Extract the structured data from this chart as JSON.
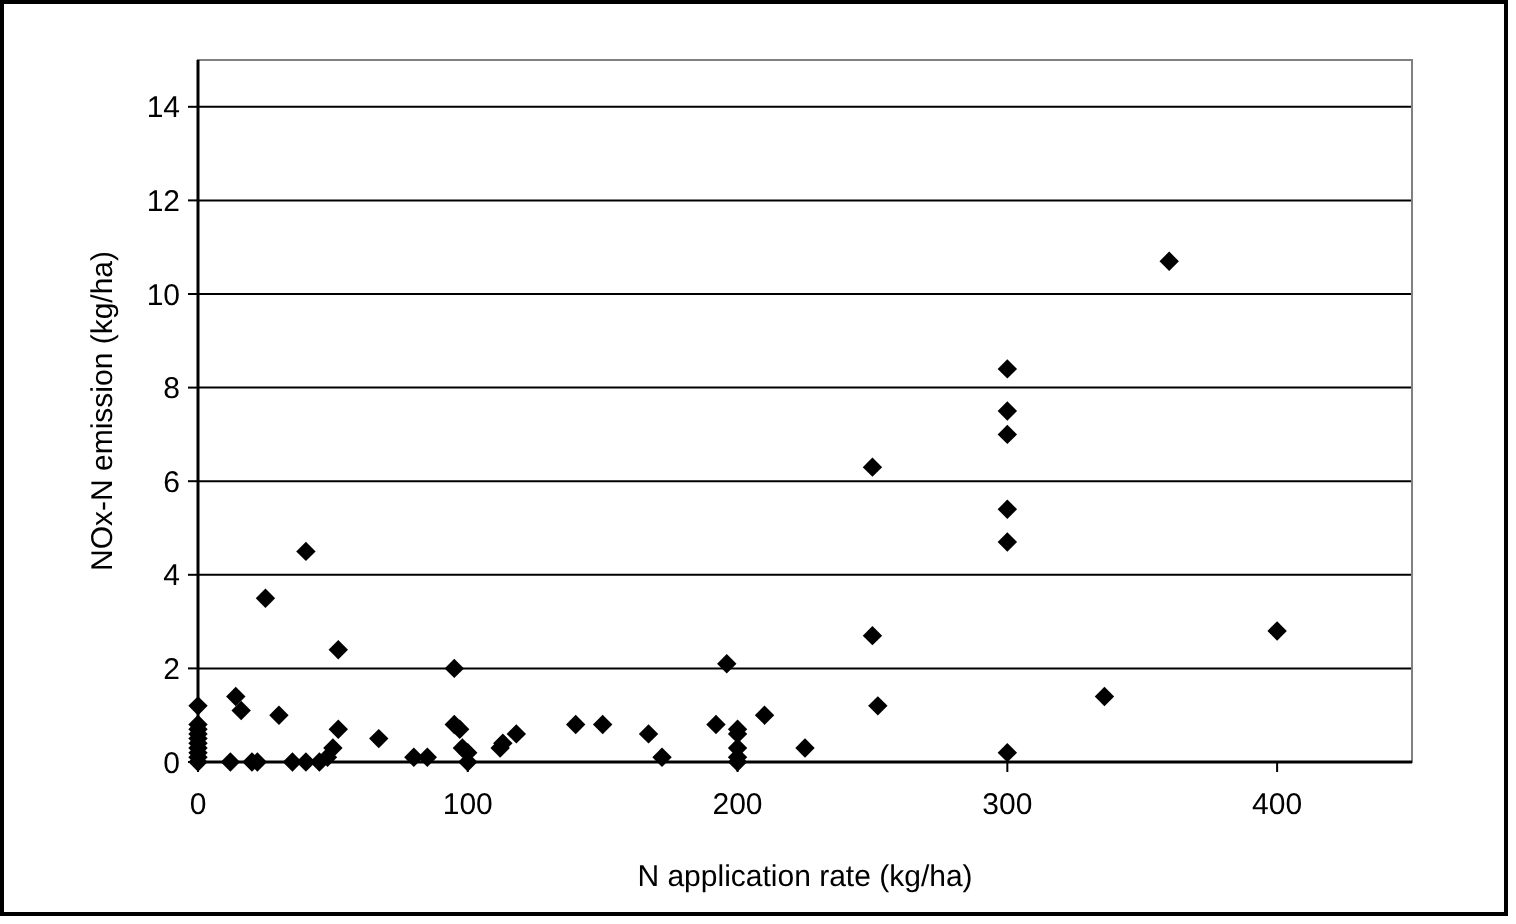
{
  "chart_data": {
    "type": "scatter",
    "xlabel": "N application rate (kg/ha)",
    "ylabel": "NOx-N emission (kg/ha)",
    "x": [
      0,
      0,
      0,
      0,
      0,
      0,
      0,
      0,
      0,
      0,
      12,
      14,
      16,
      20,
      22,
      25,
      30,
      35,
      40,
      40,
      45,
      48,
      50,
      52,
      52,
      67,
      80,
      85,
      95,
      95,
      97,
      98,
      100,
      100,
      112,
      113,
      118,
      140,
      150,
      167,
      172,
      192,
      196,
      200,
      200,
      200,
      200,
      200,
      210,
      225,
      250,
      250,
      252,
      300,
      300,
      300,
      300,
      300,
      300,
      336,
      360,
      400
    ],
    "values": [
      1.2,
      0.8,
      0.7,
      0.6,
      0.5,
      0.4,
      0.3,
      0.2,
      0.1,
      0,
      0,
      1.4,
      1.1,
      0,
      0,
      3.5,
      1.0,
      0,
      4.5,
      0,
      0,
      0.1,
      0.3,
      2.4,
      0.7,
      0.5,
      0.1,
      0.1,
      2.0,
      0.8,
      0.7,
      0.3,
      0.2,
      0,
      0.3,
      0.4,
      0.6,
      0.8,
      0.8,
      0.6,
      0.1,
      0.8,
      2.1,
      0.7,
      0.6,
      0.3,
      0.1,
      0,
      1.0,
      0.3,
      6.3,
      2.7,
      1.2,
      8.4,
      7.5,
      7.0,
      5.4,
      4.7,
      0.2,
      1.4,
      10.7,
      2.8
    ],
    "color": "#000000",
    "marker": "diamond",
    "xlim": [
      0,
      450
    ],
    "xticks": [
      0,
      100,
      200,
      300,
      400
    ],
    "ylim": [
      0,
      15
    ],
    "yticks": [
      0,
      2,
      4,
      6,
      8,
      10,
      12,
      14
    ],
    "grid": "y"
  }
}
